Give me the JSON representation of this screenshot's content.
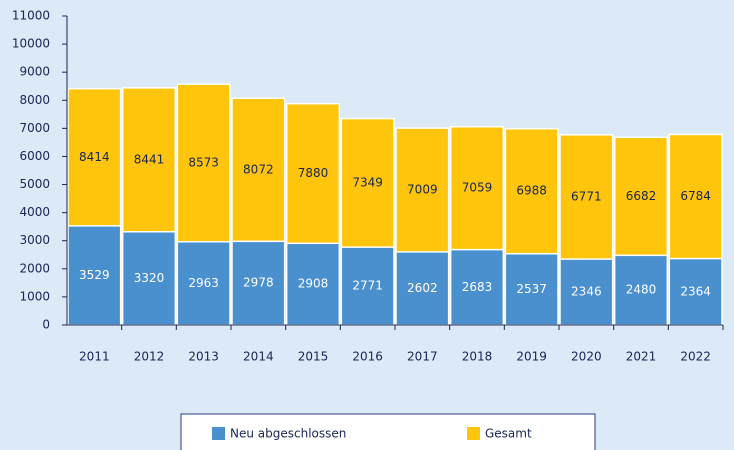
{
  "chart_data": {
    "type": "bar",
    "overlap": true,
    "categories": [
      "2011",
      "2012",
      "2013",
      "2014",
      "2015",
      "2016",
      "2017",
      "2018",
      "2019",
      "2020",
      "2021",
      "2022"
    ],
    "series": [
      {
        "name": "Gesamt",
        "color": "#ffc50d",
        "values": [
          8414,
          8441,
          8573,
          8072,
          7880,
          7349,
          7009,
          7059,
          6988,
          6771,
          6682,
          6784
        ]
      },
      {
        "name": "Neu abgeschlossen",
        "color": "#4a8fce",
        "values": [
          3529,
          3320,
          2963,
          2978,
          2908,
          2771,
          2602,
          2683,
          2537,
          2346,
          2480,
          2364
        ]
      }
    ],
    "ylim": [
      0,
      11000
    ],
    "yticks": [
      0,
      1000,
      2000,
      3000,
      4000,
      5000,
      6000,
      7000,
      8000,
      9000,
      10000,
      11000
    ]
  }
}
